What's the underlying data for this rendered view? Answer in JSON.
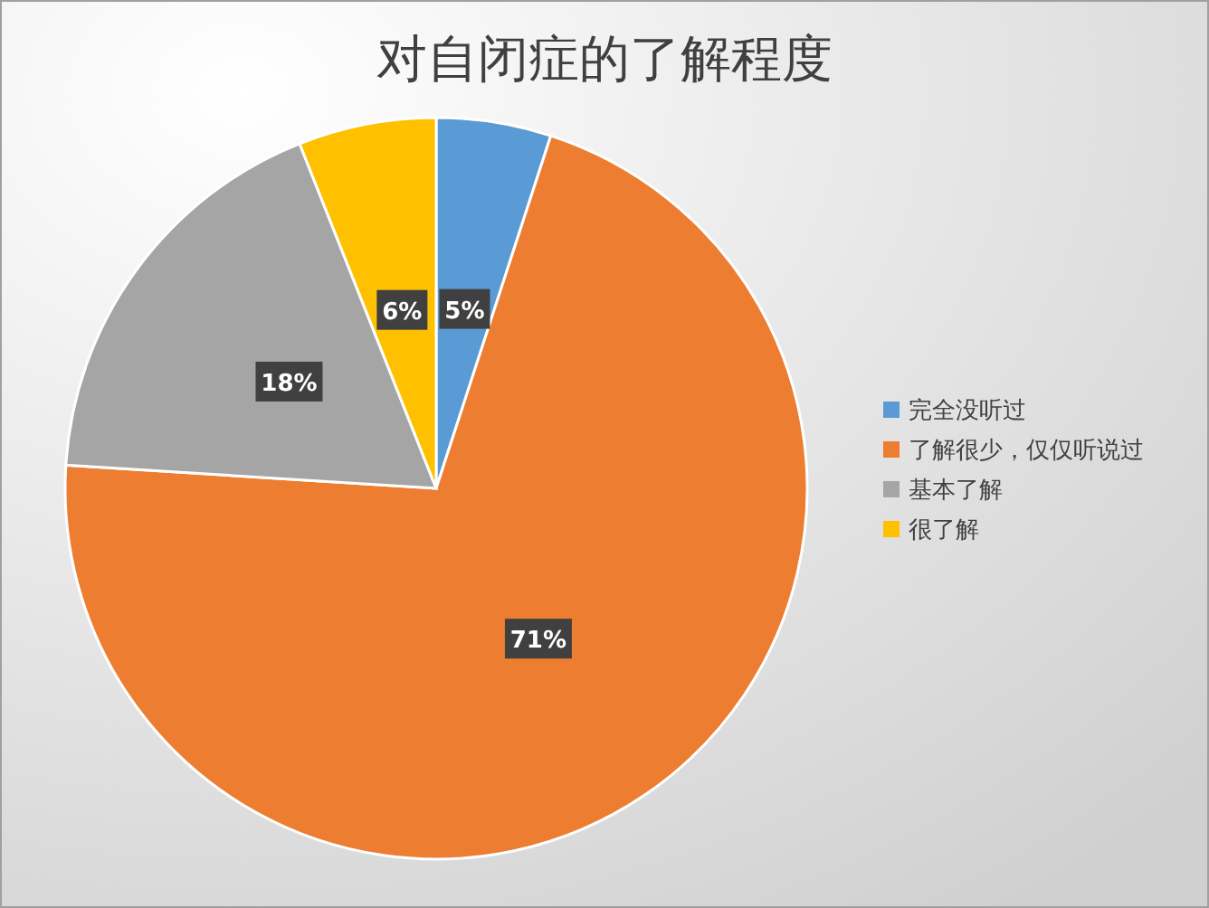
{
  "chart_data": {
    "type": "pie",
    "title": "对自闭症的了解程度",
    "categories": [
      "完全没听过",
      "了解很少，仅仅听说过",
      "基本了解",
      "很了解"
    ],
    "values": [
      5,
      71,
      18,
      6
    ],
    "colors": [
      "#5b9bd5",
      "#ed7d31",
      "#a5a5a5",
      "#ffc000"
    ],
    "value_labels": [
      "5%",
      "71%",
      "18%",
      "6%"
    ],
    "legend": "right"
  }
}
